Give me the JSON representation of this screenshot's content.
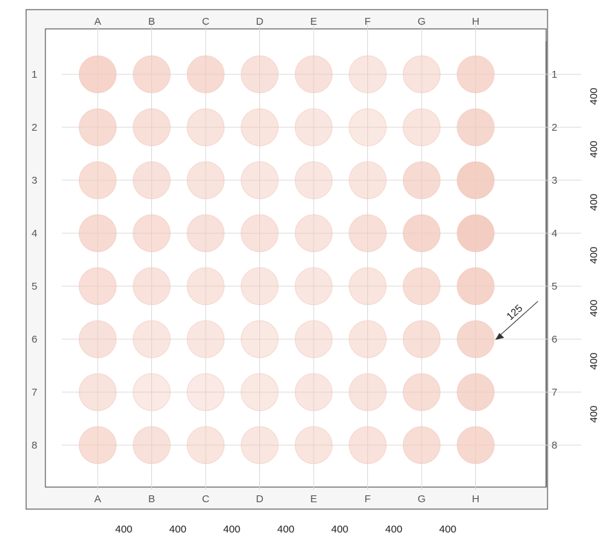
{
  "plate": {
    "columns": [
      "A",
      "B",
      "C",
      "D",
      "E",
      "F",
      "G",
      "H"
    ],
    "rows": [
      "1",
      "2",
      "3",
      "4",
      "5",
      "6",
      "7",
      "8"
    ]
  },
  "dimensions": {
    "column_spacing": [
      "400",
      "400",
      "400",
      "400",
      "400",
      "400",
      "400"
    ],
    "row_spacing": [
      "400",
      "400",
      "400",
      "400",
      "400",
      "400",
      "400"
    ],
    "spot_callout": "125"
  },
  "colors": {
    "frame": "#555555",
    "grid": "#d9d9d9",
    "spot_fill": "#f3c8bb"
  },
  "spot_intensity": [
    [
      0.78,
      0.66,
      0.66,
      0.55,
      0.55,
      0.45,
      0.5,
      0.7
    ],
    [
      0.68,
      0.58,
      0.5,
      0.48,
      0.45,
      0.42,
      0.48,
      0.72
    ],
    [
      0.62,
      0.55,
      0.5,
      0.45,
      0.45,
      0.48,
      0.65,
      0.88
    ],
    [
      0.68,
      0.6,
      0.55,
      0.52,
      0.5,
      0.58,
      0.75,
      0.9
    ],
    [
      0.6,
      0.52,
      0.48,
      0.45,
      0.45,
      0.48,
      0.62,
      0.8
    ],
    [
      0.55,
      0.45,
      0.45,
      0.42,
      0.45,
      0.48,
      0.58,
      0.72
    ],
    [
      0.5,
      0.4,
      0.4,
      0.42,
      0.45,
      0.5,
      0.62,
      0.72
    ],
    [
      0.62,
      0.55,
      0.48,
      0.45,
      0.48,
      0.52,
      0.62,
      0.7
    ]
  ]
}
